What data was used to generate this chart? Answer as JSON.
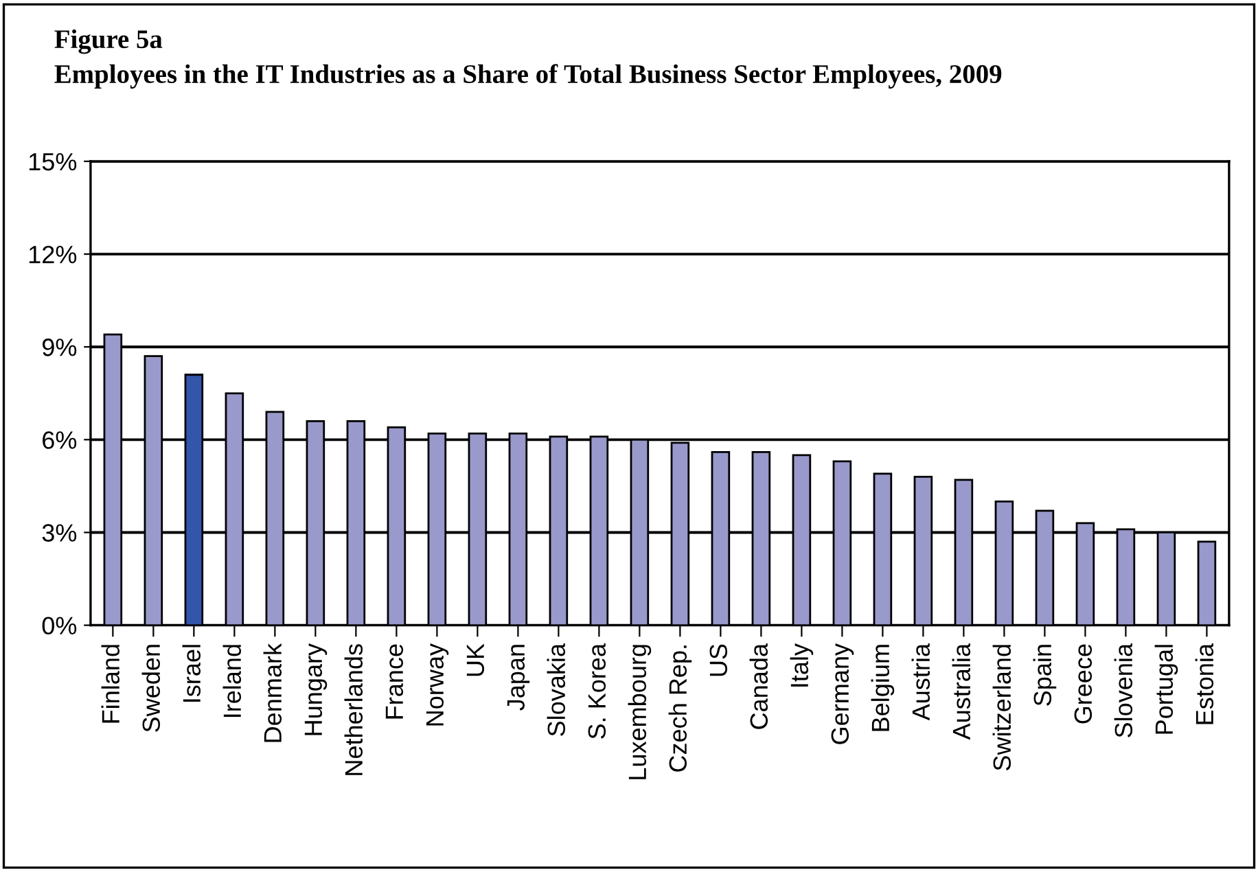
{
  "chart_data": {
    "type": "bar",
    "title": "Figure 5a",
    "subtitle": "Employees in the IT Industries as a Share of Total Business Sector Employees, 2009",
    "categories": [
      "Finland",
      "Sweden",
      "Israel",
      "Ireland",
      "Denmark",
      "Hungary",
      "Netherlands",
      "France",
      "Norway",
      "UK",
      "Japan",
      "Slovakia",
      "S. Korea",
      "Luxembourg",
      "Czech Rep.",
      "US",
      "Canada",
      "Italy",
      "Germany",
      "Belgium",
      "Austria",
      "Australia",
      "Switzerland",
      "Spain",
      "Greece",
      "Slovenia",
      "Portugal",
      "Estonia"
    ],
    "values": [
      9.4,
      8.7,
      8.1,
      7.5,
      6.9,
      6.6,
      6.6,
      6.4,
      6.2,
      6.2,
      6.2,
      6.1,
      6.1,
      6.0,
      5.9,
      5.6,
      5.6,
      5.5,
      5.3,
      4.9,
      4.8,
      4.7,
      4.0,
      3.7,
      3.3,
      3.1,
      3.0,
      2.7
    ],
    "colors": [
      "#9999cc",
      "#9999cc",
      "#3355aa",
      "#9999cc",
      "#9999cc",
      "#9999cc",
      "#9999cc",
      "#9999cc",
      "#9999cc",
      "#9999cc",
      "#9999cc",
      "#9999cc",
      "#9999cc",
      "#9999cc",
      "#9999cc",
      "#9999cc",
      "#9999cc",
      "#9999cc",
      "#9999cc",
      "#9999cc",
      "#9999cc",
      "#9999cc",
      "#9999cc",
      "#9999cc",
      "#9999cc",
      "#9999cc",
      "#9999cc",
      "#9999cc"
    ],
    "ylim": [
      0,
      15
    ],
    "yticks": [
      {
        "value": 0,
        "label": "0%"
      },
      {
        "value": 3,
        "label": "3%"
      },
      {
        "value": 6,
        "label": "6%"
      },
      {
        "value": 9,
        "label": "9%"
      },
      {
        "value": 12,
        "label": "12%"
      },
      {
        "value": 15,
        "label": "15%"
      }
    ],
    "grid": "y",
    "legend": false
  }
}
